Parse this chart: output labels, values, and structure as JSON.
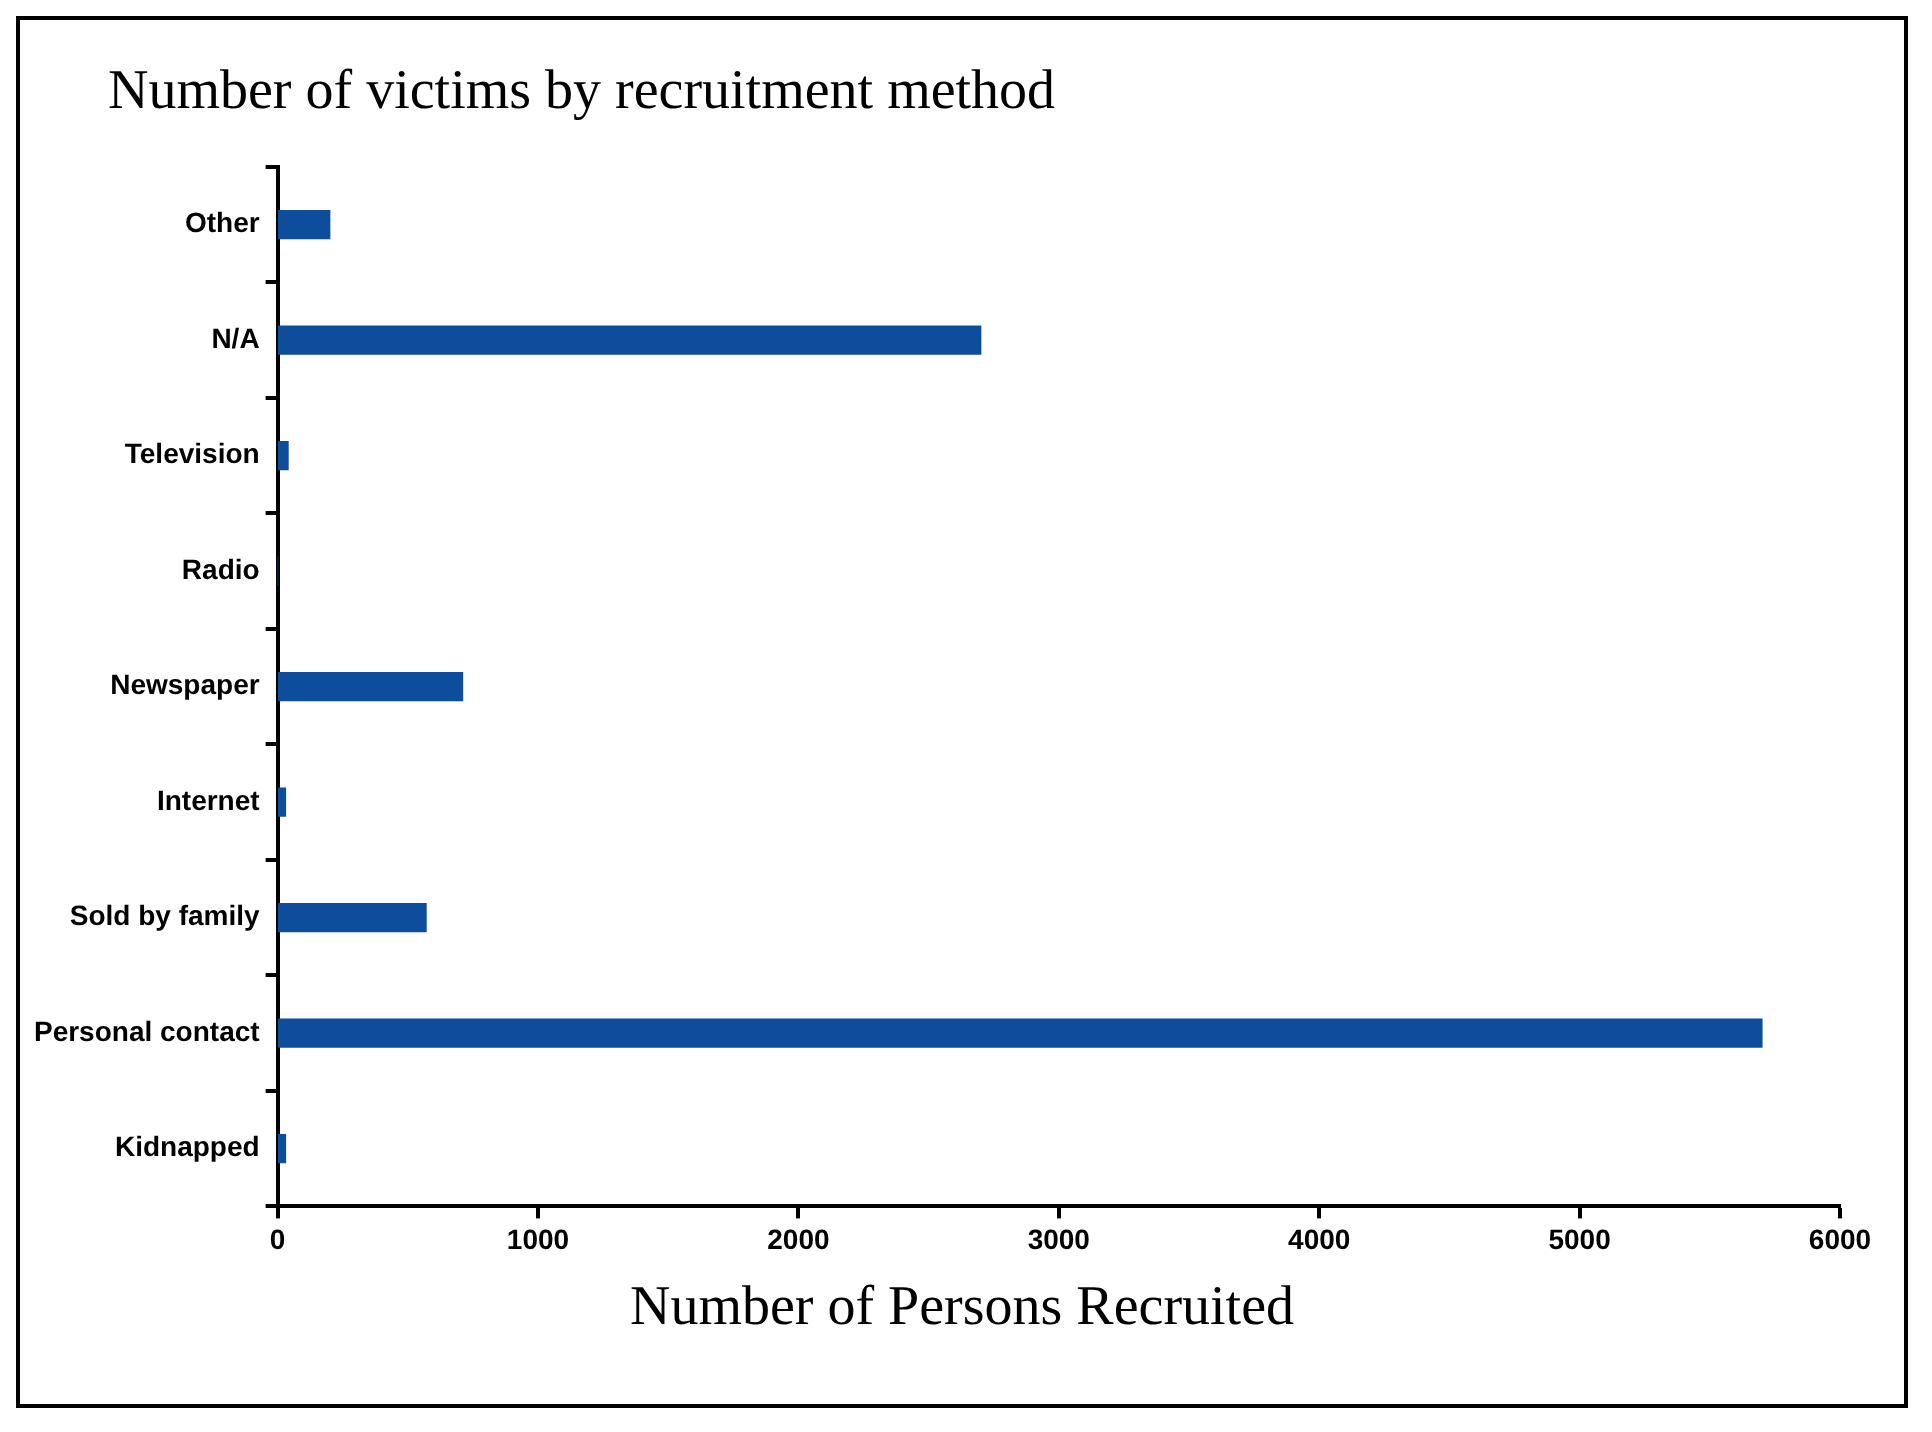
{
  "chart_data": {
    "type": "bar",
    "orientation": "horizontal",
    "title": "Number of victims by recruitment method",
    "xlabel": "Number of Persons Recruited",
    "categories": [
      "Other",
      "N/A",
      "Television",
      "Radio",
      "Newspaper",
      "Internet",
      "Sold by family",
      "Personal contact",
      "Kidnapped"
    ],
    "values": [
      200,
      2700,
      40,
      0,
      710,
      30,
      570,
      5700,
      30
    ],
    "color": "#0e4c9c",
    "xlim": [
      0,
      6000
    ],
    "xticks": [
      0,
      1000,
      2000,
      3000,
      4000,
      5000,
      6000
    ],
    "grid": false,
    "legend": false
  }
}
